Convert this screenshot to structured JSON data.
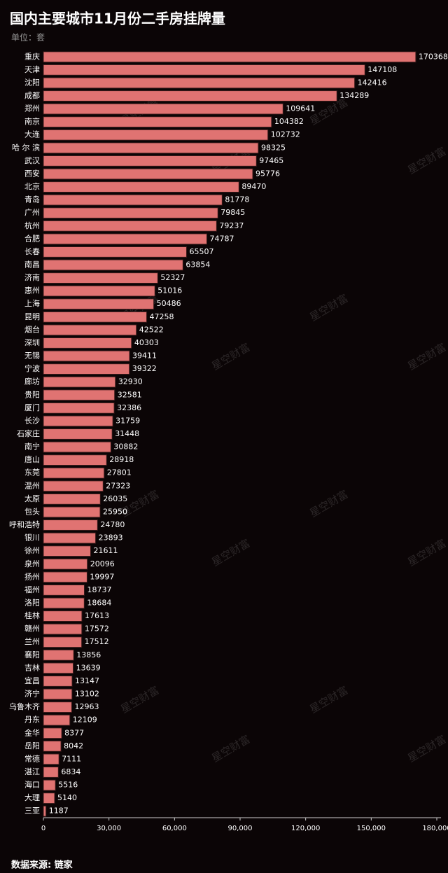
{
  "chart_data": {
    "type": "hbar",
    "title": "国内主要城市11月份二手房挂牌量",
    "subtitle": "单位：套",
    "source": "数据来源: 链家",
    "watermark": "星空财富",
    "categories": [
      "重庆",
      "天津",
      "沈阳",
      "成都",
      "郑州",
      "南京",
      "大连",
      "哈 尔 滨",
      "武汉",
      "西安",
      "北京",
      "青岛",
      "广州",
      "杭州",
      "合肥",
      "长春",
      "南昌",
      "济南",
      "惠州",
      "上海",
      "昆明",
      "烟台",
      "深圳",
      "无锡",
      "宁波",
      "廊坊",
      "贵阳",
      "厦门",
      "长沙",
      "石家庄",
      "南宁",
      "唐山",
      "东莞",
      "温州",
      "太原",
      "包头",
      "呼和浩特",
      "银川",
      "徐州",
      "泉州",
      "扬州",
      "福州",
      "洛阳",
      "桂林",
      "赣州",
      "兰州",
      "襄阳",
      "吉林",
      "宜昌",
      "济宁",
      "乌鲁木齐",
      "丹东",
      "金华",
      "岳阳",
      "常德",
      "湛江",
      "海口",
      "大理",
      "三亚"
    ],
    "values": [
      170368,
      147108,
      142416,
      134289,
      109641,
      104382,
      102732,
      98325,
      97465,
      95776,
      89470,
      81778,
      79845,
      79237,
      74787,
      65507,
      63854,
      52327,
      51016,
      50486,
      47258,
      42522,
      40303,
      39411,
      39322,
      32930,
      32581,
      32386,
      31759,
      31448,
      30882,
      28918,
      27801,
      27323,
      26035,
      25950,
      24780,
      23893,
      21611,
      20096,
      19997,
      18737,
      18684,
      17613,
      17572,
      17512,
      13856,
      13639,
      13147,
      13102,
      12963,
      12109,
      8377,
      8042,
      7111,
      6834,
      5516,
      5140,
      1187
    ],
    "color": "#e07372",
    "xlim": [
      0,
      180000
    ],
    "xticks": [
      0,
      {
        "value": 30000,
        "label": "30,000"
      },
      {
        "value": 60000,
        "label": "60,000"
      },
      {
        "value": 90000,
        "label": "90,000"
      },
      {
        "value": 120000,
        "label": "120,000"
      },
      {
        "value": 150000,
        "label": "150,000"
      },
      {
        "value": 180000,
        "label": "180,000"
      }
    ]
  }
}
